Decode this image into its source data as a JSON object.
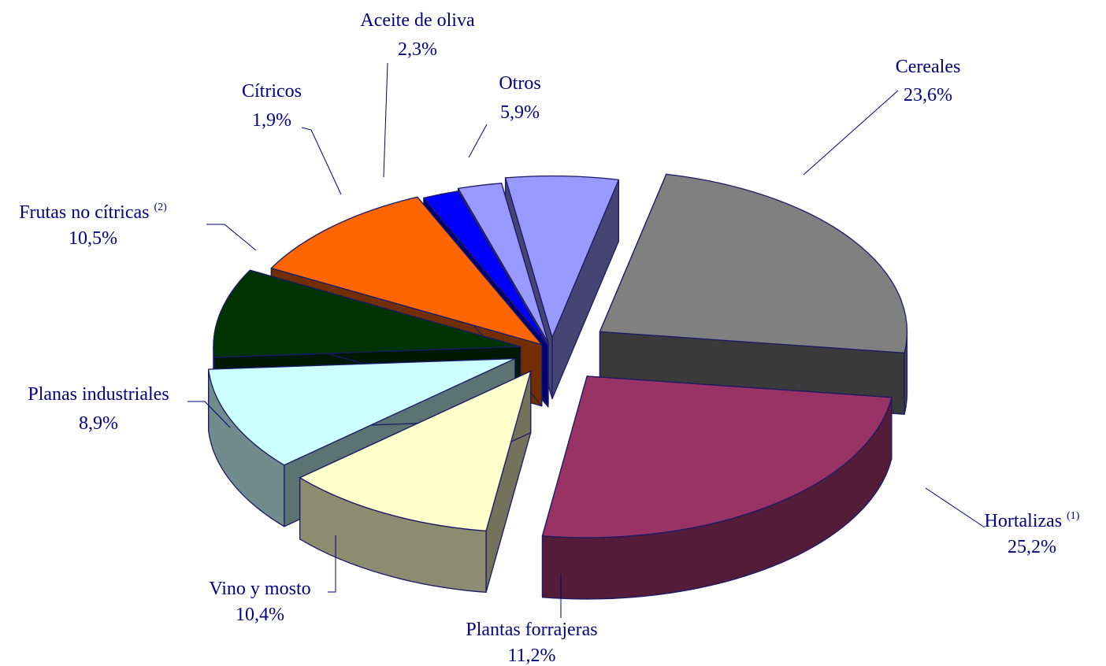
{
  "chart_data": {
    "type": "pie",
    "variant": "3d-exploded",
    "unit": "%",
    "legend": "none",
    "slices": [
      {
        "label": "Cereales",
        "note": "",
        "value": 23.6,
        "value_text": "23,6%",
        "color": "#808080"
      },
      {
        "label": "Hortalizas",
        "note": "(1)",
        "value": 25.2,
        "value_text": "25,2%",
        "color": "#993366"
      },
      {
        "label": "Plantas forrajeras",
        "note": "",
        "value": 11.2,
        "value_text": "11,2%",
        "color": "#FFFFCC"
      },
      {
        "label": "Vino y mosto",
        "note": "",
        "value": 10.4,
        "value_text": "10,4%",
        "color": "#CCFFFF"
      },
      {
        "label": "Planas industriales",
        "note": "",
        "value": 8.9,
        "value_text": "8,9%",
        "color": "#003300"
      },
      {
        "label": "Frutas no cítricas",
        "note": "(2)",
        "value": 10.5,
        "value_text": "10,5%",
        "color": "#FF6600"
      },
      {
        "label": "Cítricos",
        "note": "",
        "value": 1.9,
        "value_text": "1,9%",
        "color": "#0000FF"
      },
      {
        "label": "Aceite de oliva",
        "note": "",
        "value": 2.3,
        "value_text": "2,3%",
        "color": "#9999FF"
      },
      {
        "label": "Otros",
        "note": "",
        "value": 5.9,
        "value_text": "5,9%",
        "color": "#9999FF"
      }
    ]
  }
}
